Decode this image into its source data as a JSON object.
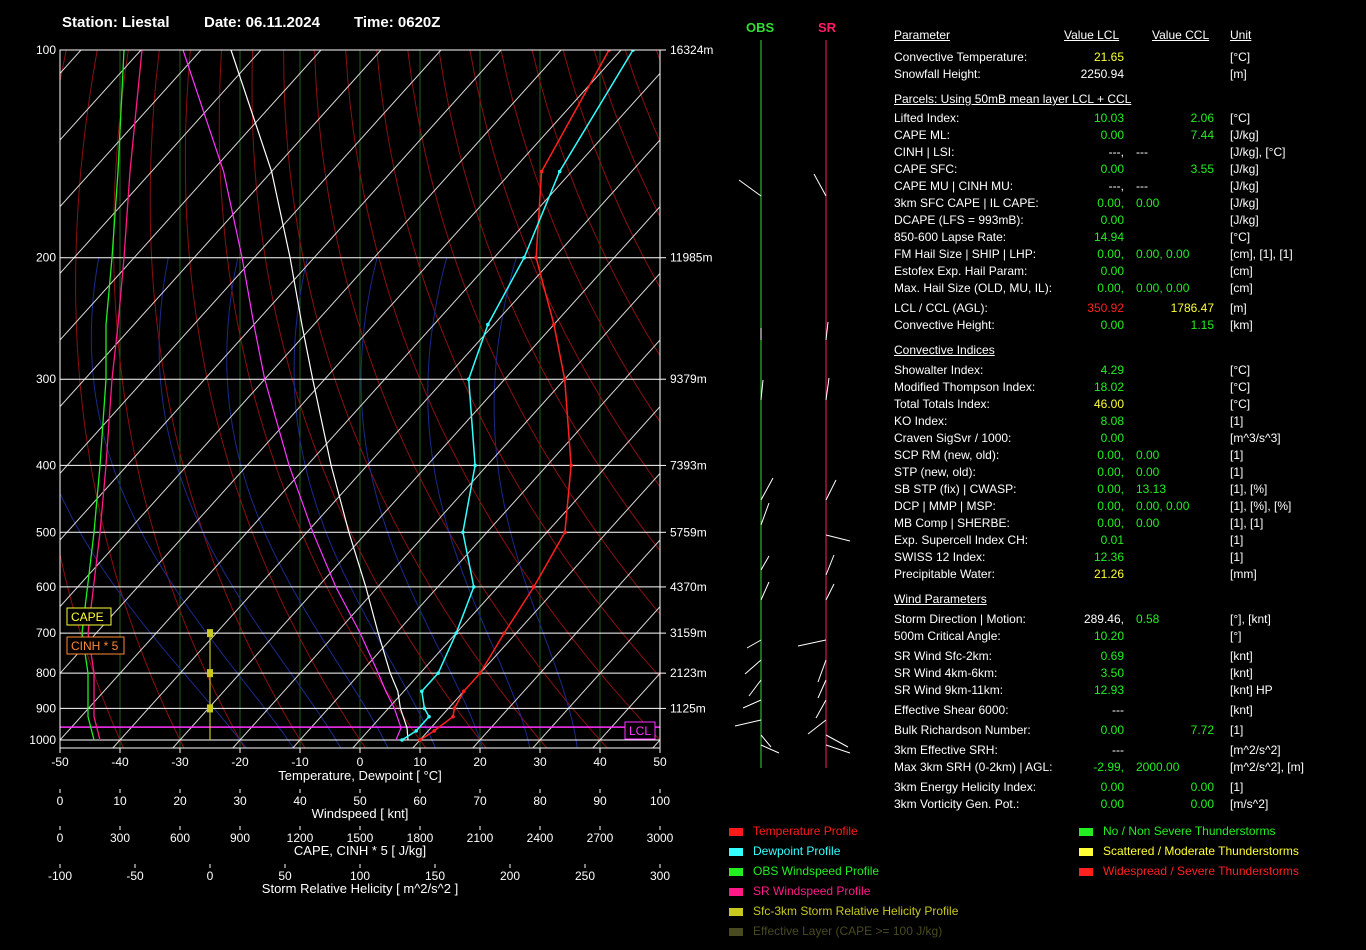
{
  "header": {
    "station": "Station: Liestal",
    "date": "Date: 06.11.2024",
    "time": "Time: 0620Z"
  },
  "colors": {
    "green": "#22ee22",
    "yellow": "#ffff33",
    "red": "#ff2020",
    "cyan": "#33ffff",
    "magenta": "#ff33ff",
    "obs": "#33dd33",
    "sr": "#ff1a66"
  },
  "chart_data": {
    "type": "line",
    "title": "",
    "xlabel": "Temperature, Dewpoint [ °C]",
    "ylabel": "",
    "xlim": [
      -50,
      50
    ],
    "x_ticks": [
      "-50",
      "-40",
      "-30",
      "-20",
      "-10",
      "0",
      "10",
      "20",
      "30",
      "40",
      "50"
    ],
    "pressure_ticks": [
      "100",
      "200",
      "300",
      "400",
      "500",
      "600",
      "700",
      "800",
      "900",
      "1000"
    ],
    "height_ticks": [
      "16324m",
      "11985m",
      "9379m",
      "7393m",
      "5759m",
      "4370m",
      "3159m",
      "2123m",
      "1125m"
    ],
    "secondary_axes": [
      {
        "label": "Windspeed [ knt]",
        "ticks": [
          "0",
          "10",
          "20",
          "30",
          "40",
          "50",
          "60",
          "70",
          "80",
          "90",
          "100"
        ]
      },
      {
        "label": "CAPE, CINH * 5 [ J/kg]",
        "ticks": [
          "0",
          "300",
          "600",
          "900",
          "1200",
          "1500",
          "1800",
          "2100",
          "2400",
          "2700",
          "3000"
        ]
      },
      {
        "label": "Storm Relative Helicity [ m^2/s^2 ]",
        "ticks": [
          "-100",
          "-50",
          "0",
          "50",
          "100",
          "150",
          "200",
          "250",
          "300"
        ]
      }
    ],
    "tags": {
      "cape": "CAPE",
      "cinh": "CINH * 5",
      "lcl": "LCL"
    },
    "series": [
      {
        "name": "Temperature Profile",
        "color": "#ff2020",
        "points": [
          [
            1000,
            10
          ],
          [
            970,
            11
          ],
          [
            925,
            12
          ],
          [
            900,
            11
          ],
          [
            850,
            10
          ],
          [
            800,
            10
          ],
          [
            700,
            8
          ],
          [
            600,
            6
          ],
          [
            500,
            3
          ],
          [
            400,
            -6
          ],
          [
            300,
            -20
          ],
          [
            250,
            -30
          ],
          [
            200,
            -43
          ],
          [
            150,
            -55
          ],
          [
            100,
            -62
          ]
        ]
      },
      {
        "name": "Dewpoint Profile",
        "color": "#33ffff",
        "points": [
          [
            1000,
            7
          ],
          [
            970,
            8
          ],
          [
            925,
            8
          ],
          [
            900,
            6
          ],
          [
            850,
            3
          ],
          [
            800,
            3
          ],
          [
            700,
            0
          ],
          [
            600,
            -4
          ],
          [
            500,
            -14
          ],
          [
            400,
            -22
          ],
          [
            300,
            -36
          ],
          [
            250,
            -41
          ],
          [
            200,
            -45
          ],
          [
            150,
            -52
          ],
          [
            100,
            -58
          ]
        ]
      }
    ],
    "obs_wind": {
      "name": "OBS Windspeed Profile",
      "points": [
        [
          1000,
          4
        ],
        [
          925,
          3
        ],
        [
          850,
          3
        ],
        [
          800,
          3
        ],
        [
          700,
          2
        ],
        [
          500,
          4
        ],
        [
          400,
          5
        ],
        [
          300,
          6
        ],
        [
          250,
          6
        ],
        [
          200,
          7
        ],
        [
          150,
          8
        ],
        [
          100,
          9
        ]
      ]
    },
    "sr_wind": {
      "name": "SR Windspeed Profile",
      "points": [
        [
          1000,
          5
        ],
        [
          925,
          4
        ],
        [
          850,
          4
        ],
        [
          800,
          4
        ],
        [
          700,
          3
        ],
        [
          500,
          5
        ],
        [
          400,
          6
        ],
        [
          300,
          7
        ],
        [
          250,
          8
        ],
        [
          200,
          9
        ],
        [
          150,
          10
        ],
        [
          100,
          12
        ]
      ]
    }
  },
  "wind_headers": {
    "obs": "OBS",
    "sr": "SR"
  },
  "params": {
    "col_headers": {
      "param": "Parameter",
      "lcl": "Value LCL",
      "ccl": "Value CCL",
      "unit": "Unit"
    },
    "rows": [
      {
        "y": 57,
        "label": "Convective Temperature:",
        "v1": "21.65",
        "c1": "yellow",
        "v2": "",
        "c2": "",
        "unit": "[°C]"
      },
      {
        "y": 74,
        "label": "Snowfall Height:",
        "v1": "2250.94",
        "c1": "white",
        "v2": "",
        "c2": "",
        "unit": "[m]"
      },
      {
        "y": 99,
        "section": "Parcels: Using 50mB mean layer LCL + CCL"
      },
      {
        "y": 118,
        "label": "Lifted Index:",
        "v1": "10.03",
        "c1": "green",
        "v2": "2.06",
        "c2": "green",
        "unit": "[°C]"
      },
      {
        "y": 135,
        "label": "CAPE ML:",
        "v1": "0.00",
        "c1": "green",
        "v2": "7.44",
        "c2": "green",
        "unit": "[J/kg]"
      },
      {
        "y": 152,
        "label": "CINH | LSI:",
        "v1": "---,",
        "c1": "white",
        "v2": "---",
        "c2": "white",
        "unit": "[J/kg], [°C]",
        "v2x": 1136
      },
      {
        "y": 169,
        "label": "CAPE SFC:",
        "v1": "0.00",
        "c1": "green",
        "v2": "3.55",
        "c2": "green",
        "unit": "[J/kg]"
      },
      {
        "y": 186,
        "label": "CAPE MU | CINH MU:",
        "v1": "---,",
        "c1": "white",
        "v2": "---",
        "c2": "white",
        "unit": "[J/kg]",
        "v2x": 1136
      },
      {
        "y": 203,
        "label": "3km SFC CAPE | IL CAPE:",
        "v1": "0.00,",
        "c1": "green",
        "v2": "0.00",
        "c2": "green",
        "unit": "[J/kg]",
        "v2x": 1136
      },
      {
        "y": 220,
        "label": "DCAPE (LFS = 993mB):",
        "v1": "0.00",
        "c1": "green",
        "v2": "",
        "c2": "",
        "unit": "[J/kg]"
      },
      {
        "y": 237,
        "label": "850-600 Lapse Rate:",
        "v1": "14.94",
        "c1": "green",
        "v2": "",
        "c2": "",
        "unit": "[°C]"
      },
      {
        "y": 254,
        "label": "FM Hail Size | SHIP | LHP:",
        "v1": "0.00,",
        "c1": "green",
        "v2": "0.00,  0.00",
        "c2": "green",
        "unit": "[cm], [1], [1]",
        "v2x": 1136
      },
      {
        "y": 271,
        "label": "Estofex Exp. Hail Param:",
        "v1": "0.00",
        "c1": "green",
        "v2": "",
        "c2": "",
        "unit": "[cm]"
      },
      {
        "y": 288,
        "label": "Max. Hail Size (OLD, MU, IL):",
        "v1": "0.00,",
        "c1": "green",
        "v2": "0.00,  0.00",
        "c2": "green",
        "unit": "[cm]",
        "v2x": 1136
      },
      {
        "y": 308,
        "label": "LCL / CCL (AGL):",
        "v1": "350.92",
        "c1": "red",
        "v2": "1786.47",
        "c2": "yellow",
        "unit": "[m]"
      },
      {
        "y": 325,
        "label": "Convective Height:",
        "v1": "0.00",
        "c1": "green",
        "v2": "1.15",
        "c2": "green",
        "unit": "[km]"
      },
      {
        "y": 350,
        "section": "Convective Indices"
      },
      {
        "y": 370,
        "label": "Showalter Index:",
        "v1": "4.29",
        "c1": "green",
        "v2": "",
        "c2": "",
        "unit": "[°C]"
      },
      {
        "y": 387,
        "label": "Modified Thompson Index:",
        "v1": "18.02",
        "c1": "green",
        "v2": "",
        "c2": "",
        "unit": "[°C]"
      },
      {
        "y": 404,
        "label": "Total Totals Index:",
        "v1": "46.00",
        "c1": "yellow",
        "v2": "",
        "c2": "",
        "unit": "[°C]"
      },
      {
        "y": 421,
        "label": "KO Index:",
        "v1": "8.08",
        "c1": "green",
        "v2": "",
        "c2": "",
        "unit": "[1]"
      },
      {
        "y": 438,
        "label": "Craven SigSvr / 1000:",
        "v1": "0.00",
        "c1": "green",
        "v2": "",
        "c2": "",
        "unit": "[m^3/s^3]"
      },
      {
        "y": 455,
        "label": "SCP RM (new, old):",
        "v1": "0.00,",
        "c1": "green",
        "v2": "0.00",
        "c2": "green",
        "unit": "[1]",
        "v2x": 1136
      },
      {
        "y": 472,
        "label": "STP (new, old):",
        "v1": "0.00,",
        "c1": "green",
        "v2": "0.00",
        "c2": "green",
        "unit": "[1]",
        "v2x": 1136
      },
      {
        "y": 489,
        "label": "SB STP (fix) | CWASP:",
        "v1": "0.00,",
        "c1": "green",
        "v2": "13.13",
        "c2": "green",
        "unit": "[1], [%]",
        "v2x": 1136
      },
      {
        "y": 506,
        "label": "DCP | MMP | MSP:",
        "v1": "0.00,",
        "c1": "green",
        "v2": "0.00,  0.00",
        "c2": "green",
        "unit": "[1], [%], [%]",
        "v2x": 1136
      },
      {
        "y": 523,
        "label": "MB Comp | SHERBE:",
        "v1": "0.00,",
        "c1": "green",
        "v2": "0.00",
        "c2": "green",
        "unit": "[1], [1]",
        "v2x": 1136
      },
      {
        "y": 540,
        "label": "Exp. Supercell Index CH:",
        "v1": "0.01",
        "c1": "green",
        "v2": "",
        "c2": "",
        "unit": "[1]"
      },
      {
        "y": 557,
        "label": "SWISS 12 Index:",
        "v1": "12.36",
        "c1": "green",
        "v2": "",
        "c2": "",
        "unit": "[1]"
      },
      {
        "y": 574,
        "label": "Precipitable Water:",
        "v1": "21.26",
        "c1": "yellow",
        "v2": "",
        "c2": "",
        "unit": "[mm]"
      },
      {
        "y": 599,
        "section": "Wind Parameters"
      },
      {
        "y": 619,
        "label": "Storm Direction | Motion:",
        "v1": "289.46,",
        "c1": "white",
        "v2": "0.58",
        "c2": "green",
        "unit": "[°], [knt]",
        "v2x": 1136
      },
      {
        "y": 636,
        "label": "500m Critical Angle:",
        "v1": "10.20",
        "c1": "green",
        "v2": "",
        "c2": "",
        "unit": "[°]"
      },
      {
        "y": 656,
        "label": "SR Wind Sfc-2km:",
        "v1": "0.69",
        "c1": "green",
        "v2": "",
        "c2": "",
        "unit": "[knt]"
      },
      {
        "y": 673,
        "label": "SR Wind 4km-6km:",
        "v1": "3.50",
        "c1": "green",
        "v2": "",
        "c2": "",
        "unit": "[knt]"
      },
      {
        "y": 690,
        "label": "SR Wind 9km-11km:",
        "v1": "12.93",
        "c1": "green",
        "v2": "",
        "c2": "",
        "unit": "[knt] HP"
      },
      {
        "y": 710,
        "label": "Effective Shear 6000:",
        "v1": "---",
        "c1": "white",
        "v2": "",
        "c2": "",
        "unit": "[knt]"
      },
      {
        "y": 730,
        "label": "Bulk Richardson Number:",
        "v1": "0.00",
        "c1": "green",
        "v2": "7.72",
        "c2": "green",
        "unit": "[1]"
      },
      {
        "y": 750,
        "label": "3km Effective SRH:",
        "v1": "---",
        "c1": "white",
        "v2": "",
        "c2": "",
        "unit": "[m^2/s^2]"
      },
      {
        "y": 767,
        "label": "Max 3km SRH (0-2km) | AGL:",
        "v1": "-2.99,",
        "c1": "green",
        "v2": "2000.00",
        "c2": "green",
        "unit": "[m^2/s^2], [m]",
        "v2x": 1136
      },
      {
        "y": 787,
        "label": "3km Energy Helicity Index:",
        "v1": "0.00",
        "c1": "green",
        "v2": "0.00",
        "c2": "green",
        "unit": "[1]"
      },
      {
        "y": 804,
        "label": "3km Vorticity Gen. Pot.:",
        "v1": "0.00",
        "c1": "green",
        "v2": "0.00",
        "c2": "green",
        "unit": "[m/s^2]"
      }
    ]
  },
  "legend_left": [
    {
      "label": "Temperature Profile",
      "color": "#ff1a1a"
    },
    {
      "label": "Dewpoint Profile",
      "color": "#33ffff"
    },
    {
      "label": "OBS Windspeed Profile",
      "color": "#22ee22"
    },
    {
      "label": "SR Windspeed Profile",
      "color": "#ff1a88"
    },
    {
      "label": "Sfc-3km Storm Relative Helicity Profile",
      "color": "#c8c820"
    },
    {
      "label": "Effective Layer (CAPE >= 100 J/kg)",
      "color": "#4a4a20"
    }
  ],
  "legend_right": [
    {
      "label": "No / Non Severe Thunderstorms",
      "color": "#22ee22"
    },
    {
      "label": "Scattered / Moderate Thunderstorms",
      "color": "#ffff33"
    },
    {
      "label": "Widespread / Severe Thunderstorms",
      "color": "#ff2020"
    }
  ]
}
